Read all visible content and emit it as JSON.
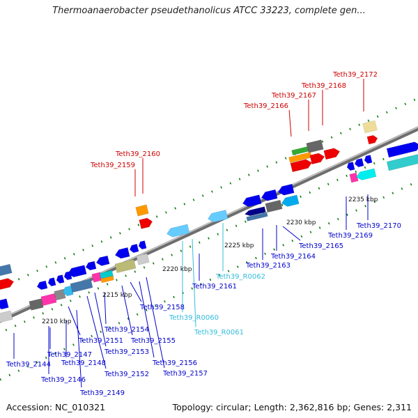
{
  "title": "Thermoanaerobacter pseudethanolicus ATCC 33223, complete gen...",
  "accession": "Accession: NC_010321",
  "summary": "Topology: circular; Length: 2,362,816 bp; Genes: 2,311",
  "colors": {
    "forward_label": "#cc0000",
    "reverse_label": "#0000cc",
    "rna_label": "#33bbdd",
    "tick": "#007700",
    "backbone": "#888888"
  },
  "scale_labels": [
    "2210 kbp",
    "2215 kbp",
    "2220 kbp",
    "2225 kbp",
    "2230 kbp",
    "2235 kbp"
  ],
  "gene_labels": {
    "forward": [
      "Teth39_2159",
      "Teth39_2160",
      "Teth39_2166",
      "Teth39_2167",
      "Teth39_2168",
      "Teth39_2172"
    ],
    "reverse": [
      "Teth39_2144",
      "Teth39_2146",
      "Teth39_2147",
      "Teth39_2148",
      "Teth39_2149",
      "Teth39_2151",
      "Teth39_2152",
      "Teth39_2153",
      "Teth39_2154",
      "Teth39_2155",
      "Teth39_2156",
      "Teth39_2157",
      "Teth39_2158",
      "Teth39_2161",
      "Teth39_2163",
      "Teth39_2164",
      "Teth39_2165",
      "Teth39_2169",
      "Teth39_2170"
    ],
    "rna": [
      "Teth39_R0060",
      "Teth39_R0061",
      "Teth39_R0062"
    ]
  }
}
